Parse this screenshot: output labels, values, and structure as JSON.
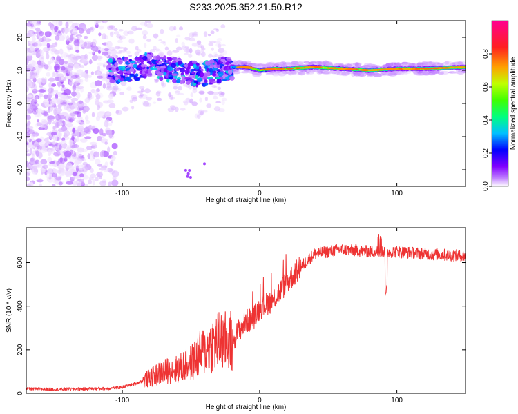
{
  "title": "S233.2025.352.21.50.R12",
  "chart_data": [
    {
      "type": "heatmap",
      "xlabel": "Height of straight line (km)",
      "ylabel": "Frequency (Hz)",
      "xlim": [
        -170,
        150
      ],
      "ylim": [
        -25,
        25
      ],
      "xticks": [
        -100,
        0,
        100
      ],
      "yticks": [
        20,
        10,
        0,
        -10,
        -20
      ],
      "ridge": {
        "x": [
          -110,
          -100,
          -90,
          -80,
          -70,
          -60,
          -50,
          -40,
          -30,
          -20,
          -10,
          0,
          10,
          20,
          40,
          60,
          80,
          100,
          120,
          150
        ],
        "freq_hz": [
          10,
          10,
          10.5,
          12,
          10.5,
          10,
          9,
          9,
          10,
          11,
          11,
          10,
          10.5,
          10.5,
          11,
          10.5,
          10,
          10.5,
          10.5,
          11
        ]
      },
      "colorbar": {
        "label": "Normalized spectral amplitude",
        "ticks": [
          0.0,
          0.2,
          0.4,
          0.6,
          0.8
        ],
        "tick_labels": [
          "0.0",
          "0.2",
          "0.4",
          "0.6",
          "0.8"
        ],
        "colors": [
          "#ffffff",
          "#c080ff",
          "#8000ff",
          "#0000ff",
          "#00c0ff",
          "#00ff80",
          "#40ff00",
          "#c0ff00",
          "#ffa000",
          "#ff2020",
          "#ff0090"
        ]
      }
    },
    {
      "type": "line",
      "xlabel": "Height of straight line (km)",
      "ylabel": "SNR (10 * v/v)",
      "xlim": [
        -170,
        150
      ],
      "ylim": [
        0,
        760
      ],
      "xticks": [
        -100,
        0,
        100
      ],
      "yticks": [
        0,
        200,
        400,
        600
      ],
      "color": "#ee3333",
      "series": [
        {
          "name": "SNR",
          "x": [
            -170,
            -150,
            -130,
            -110,
            -100,
            -90,
            -80,
            -70,
            -60,
            -50,
            -40,
            -30,
            -20,
            -15,
            -10,
            -5,
            0,
            10,
            20,
            30,
            40,
            60,
            80,
            90,
            100,
            120,
            150
          ],
          "values": [
            20,
            18,
            20,
            22,
            28,
            45,
            70,
            100,
            110,
            140,
            200,
            240,
            240,
            290,
            330,
            340,
            390,
            430,
            510,
            580,
            640,
            660,
            650,
            650,
            650,
            640,
            630
          ]
        }
      ]
    }
  ]
}
